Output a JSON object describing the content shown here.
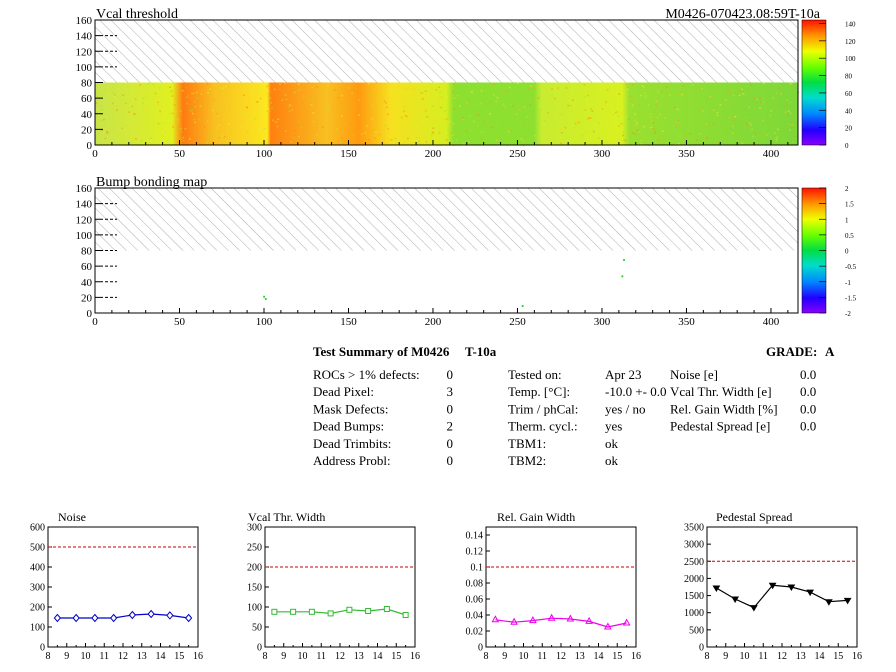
{
  "header": {
    "map1_title": "Vcal threshold",
    "module_id": "M0426-070423.08:59T-10a",
    "map2_title": "Bump bonding map"
  },
  "maps": {
    "x_ticks": [
      "0",
      "50",
      "100",
      "150",
      "200",
      "250",
      "300",
      "350",
      "400"
    ],
    "y_ticks": [
      "0",
      "20",
      "40",
      "60",
      "80",
      "100",
      "120",
      "140",
      "160"
    ],
    "xlim": [
      0,
      416
    ],
    "ylim": [
      0,
      160
    ],
    "data_ylim": [
      0,
      80
    ],
    "colorbar1_ticks": [
      "0",
      "20",
      "40",
      "60",
      "80",
      "100",
      "120",
      "140"
    ],
    "colorbar2_ticks": [
      "-2",
      "-1.5",
      "-1",
      "-0.5",
      "0",
      "0.5",
      "1",
      "1.5",
      "2"
    ],
    "bump_points": [
      [
        100,
        21
      ],
      [
        101,
        18
      ],
      [
        253,
        9
      ],
      [
        312,
        47
      ],
      [
        313,
        68
      ]
    ]
  },
  "summary": {
    "title": "Test Summary of M0426",
    "tag": "T-10a",
    "grade_label": "GRADE:",
    "grade": "A",
    "defects": [
      {
        "label": "ROCs > 1% defects:",
        "value": "0"
      },
      {
        "label": "Dead Pixel:",
        "value": "3"
      },
      {
        "label": "Mask Defects:",
        "value": "0"
      },
      {
        "label": "Dead Bumps:",
        "value": "2"
      },
      {
        "label": "Dead Trimbits:",
        "value": "0"
      },
      {
        "label": "Address Probl:",
        "value": "0"
      }
    ],
    "conditions": [
      {
        "label": "Tested on:",
        "value": "Apr 23"
      },
      {
        "label": "Temp. [°C]:",
        "value": "-10.0 +- 0.0"
      },
      {
        "label": "Trim / phCal:",
        "value": "yes / no"
      },
      {
        "label": "Therm. cycl.:",
        "value": "yes"
      },
      {
        "label": "TBM1:",
        "value": "ok"
      },
      {
        "label": "TBM2:",
        "value": "ok"
      }
    ],
    "widths": [
      {
        "label": "Noise [e]",
        "value": "0.0"
      },
      {
        "label": "Vcal Thr. Width [e]",
        "value": "0.0"
      },
      {
        "label": "Rel. Gain Width [%]",
        "value": "0.0"
      },
      {
        "label": "Pedestal Spread [e]",
        "value": "0.0"
      }
    ]
  },
  "chart_data": [
    {
      "type": "line",
      "title": "Noise",
      "x": [
        8.5,
        9.5,
        10.5,
        11.5,
        12.5,
        13.5,
        14.5,
        15.5
      ],
      "series": [
        {
          "values": [
            145,
            145,
            145,
            145,
            160,
            165,
            158,
            145
          ]
        }
      ],
      "limit": 500,
      "xlim": [
        8,
        16
      ],
      "ylim": [
        0,
        600
      ],
      "xticks": [
        "8",
        "9",
        "10",
        "11",
        "12",
        "13",
        "14",
        "15",
        "16"
      ],
      "yticks": [
        "0",
        "100",
        "200",
        "300",
        "400",
        "500",
        "600"
      ],
      "color": "#0000cc",
      "marker": "diamond"
    },
    {
      "type": "line",
      "title": "Vcal Thr. Width",
      "x": [
        8.5,
        9.5,
        10.5,
        11.5,
        12.5,
        13.5,
        14.5,
        15.5
      ],
      "series": [
        {
          "values": [
            88,
            88,
            88,
            84,
            93,
            90,
            95,
            80
          ]
        }
      ],
      "limit": 200,
      "xlim": [
        8,
        16
      ],
      "ylim": [
        0,
        300
      ],
      "xticks": [
        "8",
        "9",
        "10",
        "11",
        "12",
        "13",
        "14",
        "15",
        "16"
      ],
      "yticks": [
        "0",
        "50",
        "100",
        "150",
        "200",
        "250",
        "300"
      ],
      "color": "#33bb33",
      "marker": "square"
    },
    {
      "type": "line",
      "title": "Rel. Gain Width",
      "x": [
        8.5,
        9.5,
        10.5,
        11.5,
        12.5,
        13.5,
        14.5,
        15.5
      ],
      "series": [
        {
          "values": [
            0.034,
            0.031,
            0.033,
            0.036,
            0.035,
            0.032,
            0.025,
            0.03
          ]
        }
      ],
      "limit": 0.1,
      "xlim": [
        8,
        16
      ],
      "ylim": [
        0,
        0.15
      ],
      "xticks": [
        "8",
        "9",
        "10",
        "11",
        "12",
        "13",
        "14",
        "15",
        "16"
      ],
      "yticks": [
        "0",
        "0.02",
        "0.04",
        "0.06",
        "0.08",
        "0.1",
        "0.12",
        "0.14"
      ],
      "ytick_vals": [
        0,
        0.02,
        0.04,
        0.06,
        0.08,
        0.1,
        0.12,
        0.14
      ],
      "color": "#ee00ee",
      "marker": "triangle"
    },
    {
      "type": "line",
      "title": "Pedestal Spread",
      "x": [
        8.5,
        9.5,
        10.5,
        11.5,
        12.5,
        13.5,
        14.5,
        15.5
      ],
      "series": [
        {
          "values": [
            1720,
            1400,
            1150,
            1800,
            1750,
            1600,
            1320,
            1360
          ]
        }
      ],
      "limit": 2500,
      "xlim": [
        8,
        16
      ],
      "ylim": [
        0,
        3500
      ],
      "xticks": [
        "8",
        "9",
        "10",
        "11",
        "12",
        "13",
        "14",
        "15",
        "16"
      ],
      "yticks": [
        "0",
        "500",
        "1000",
        "1500",
        "2000",
        "2500",
        "3000",
        "3500"
      ],
      "color": "#000000",
      "marker": "triangle-down"
    }
  ]
}
